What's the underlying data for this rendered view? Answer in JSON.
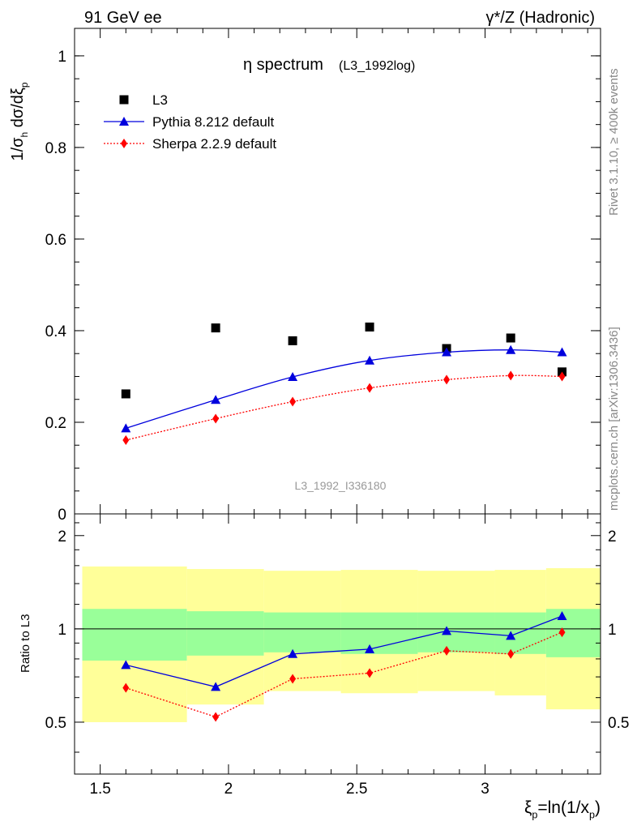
{
  "header": {
    "left": "91 GeV ee",
    "right": "γ*/Z (Hadronic)"
  },
  "side_labels": {
    "rivet": "Rivet 3.1.10, ≥ 400k events",
    "mcplots": "mcplots.cern.ch [arXiv:1306.3436]"
  },
  "watermark": "L3_1992_I336180",
  "chart_data": [
    {
      "type": "line",
      "title": "η spectrum",
      "title_suffix": "(L3_1992log)",
      "ylabel": "1/σ_h dσ/dξ_p",
      "xlim": [
        1.4,
        3.45
      ],
      "ylim": [
        0,
        1.06
      ],
      "y_ticks": [
        0,
        0.2,
        0.4,
        0.6,
        0.8,
        1
      ],
      "y_tick_labels": [
        "0",
        "0.2",
        "0.4",
        "0.6",
        "0.8",
        "1"
      ],
      "legend_position": "top-left",
      "series": [
        {
          "name": "L3",
          "style": "markers",
          "marker": "square",
          "color": "#000000",
          "x": [
            1.6,
            1.95,
            2.25,
            2.55,
            2.85,
            3.1,
            3.3
          ],
          "values": [
            0.262,
            0.406,
            0.378,
            0.408,
            0.361,
            0.384,
            0.31
          ]
        },
        {
          "name": "Pythia 8.212 default",
          "style": "solid",
          "marker": "triangle",
          "color": "#0000dd",
          "x": [
            1.6,
            1.95,
            2.25,
            2.55,
            2.85,
            3.1,
            3.3
          ],
          "values": [
            0.187,
            0.249,
            0.299,
            0.335,
            0.353,
            0.358,
            0.353
          ]
        },
        {
          "name": "Sherpa 2.2.9 default",
          "style": "dotted",
          "marker": "diamond",
          "color": "#ff0000",
          "x": [
            1.6,
            1.95,
            2.25,
            2.55,
            2.85,
            3.1,
            3.3
          ],
          "values": [
            0.161,
            0.208,
            0.245,
            0.275,
            0.293,
            0.302,
            0.3
          ]
        }
      ]
    },
    {
      "type": "line",
      "ylabel": "Ratio to L3",
      "xlabel": "ξ_p=ln(1/x_p)",
      "xlim": [
        1.4,
        3.45
      ],
      "ylim": [
        0.34,
        2.35
      ],
      "reference_line": 1,
      "x_ticks": [
        1.5,
        2,
        2.5,
        3
      ],
      "x_tick_labels": [
        "1.5",
        "2",
        "2.5",
        "3"
      ],
      "y_ticks": [
        0.5,
        1,
        2
      ],
      "y_tick_labels": [
        "0.5",
        "1",
        "2"
      ],
      "bands": {
        "edges": [
          1.4,
          1.8,
          2.1,
          2.4,
          2.7,
          3.0,
          3.2,
          3.41
        ],
        "outer": {
          "color": "#ffff99",
          "lo": [
            0.5,
            0.57,
            0.63,
            0.62,
            0.63,
            0.61,
            0.55
          ],
          "hi": [
            1.59,
            1.56,
            1.54,
            1.55,
            1.54,
            1.55,
            1.57
          ]
        },
        "inner": {
          "color": "#99ff99",
          "lo": [
            0.79,
            0.82,
            0.84,
            0.83,
            0.84,
            0.83,
            0.81
          ],
          "hi": [
            1.16,
            1.14,
            1.13,
            1.13,
            1.13,
            1.13,
            1.16
          ]
        }
      },
      "series": [
        {
          "name": "Pythia 8.212 default",
          "style": "solid",
          "marker": "triangle",
          "color": "#0000dd",
          "x": [
            1.6,
            1.95,
            2.25,
            2.55,
            2.85,
            3.1,
            3.3
          ],
          "values": [
            0.765,
            0.65,
            0.83,
            0.86,
            0.985,
            0.95,
            1.1
          ]
        },
        {
          "name": "Sherpa 2.2.9 default",
          "style": "dotted",
          "marker": "diamond",
          "color": "#ff0000",
          "x": [
            1.6,
            1.95,
            2.25,
            2.55,
            2.85,
            3.1,
            3.3
          ],
          "values": [
            0.645,
            0.52,
            0.69,
            0.72,
            0.85,
            0.83,
            0.975
          ]
        }
      ]
    }
  ]
}
